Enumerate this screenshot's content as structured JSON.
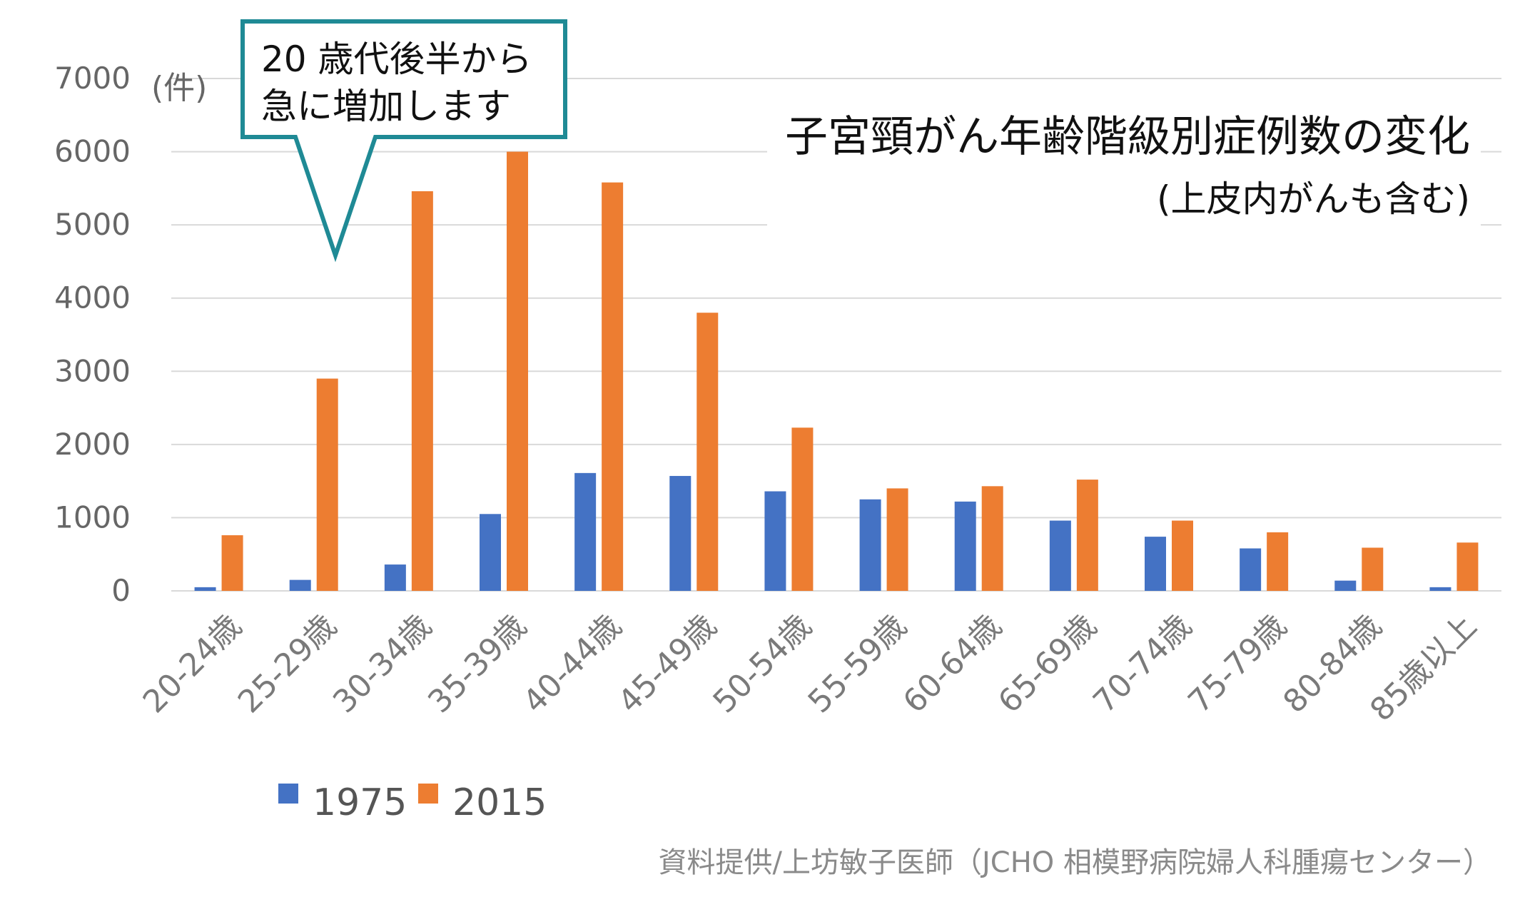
{
  "chart_data": {
    "type": "bar",
    "title": "子宮頸がん年齢階級別症例数の変化",
    "subtitle": "(上皮内がんも含む)",
    "unit_label": "(件)",
    "categories": [
      "20-24歳",
      "25-29歳",
      "30-34歳",
      "35-39歳",
      "40-44歳",
      "45-49歳",
      "50-54歳",
      "55-59歳",
      "60-64歳",
      "65-69歳",
      "70-74歳",
      "75-79歳",
      "80-84歳",
      "85歳以上"
    ],
    "series": [
      {
        "name": "1975",
        "color": "#4472C4",
        "values": [
          50,
          150,
          360,
          1050,
          1610,
          1570,
          1360,
          1250,
          1220,
          960,
          740,
          580,
          140,
          50
        ]
      },
      {
        "name": "2015",
        "color": "#ED7D31",
        "values": [
          760,
          2900,
          5460,
          6000,
          5580,
          3800,
          2230,
          1400,
          1430,
          1520,
          960,
          800,
          590,
          660
        ]
      }
    ],
    "yticks": [
      "0",
      "1000",
      "2000",
      "3000",
      "4000",
      "5000",
      "6000",
      "7000"
    ],
    "ylim": [
      0,
      7000
    ],
    "grid": true,
    "legend_position": "bottom-left"
  },
  "callout": {
    "lines": [
      "20 歳代後半から",
      "急に増加します"
    ],
    "border_color": "#1F8A95"
  },
  "credit": "資料提供/上坊敏子医師（JCHO 相模野病院婦人科腫瘍センター）"
}
